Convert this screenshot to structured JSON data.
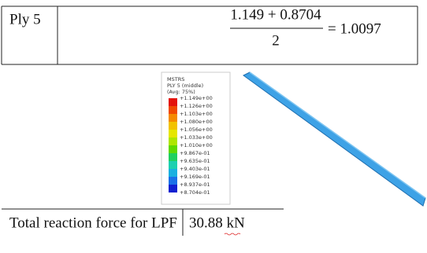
{
  "row": {
    "label": "Ply 5",
    "numerator": "1.149 + 0.8704",
    "denominator": "2",
    "result": "= 1.0097"
  },
  "figure": {
    "legend": {
      "title": "MSTRS",
      "subtitle": "PLY 5 (middle)",
      "averaging": "(Avg: 75%)",
      "values": [
        "+1.149e+00",
        "+1.126e+00",
        "+1.103e+00",
        "+1.080e+00",
        "+1.056e+00",
        "+1.033e+00",
        "+1.010e+00",
        "+9.867e-01",
        "+9.635e-01",
        "+9.403e-01",
        "+9.169e-01",
        "+8.937e-01",
        "+8.704e-01"
      ]
    }
  },
  "footer_table": {
    "label": "Total reaction force for LPF",
    "value": "30.88 kN"
  }
}
